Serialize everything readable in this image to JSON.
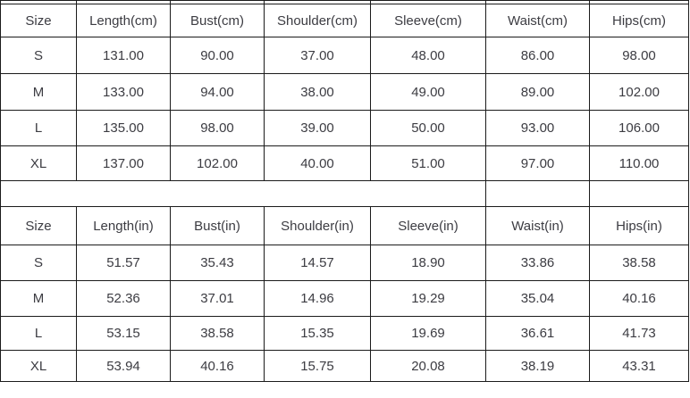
{
  "colors": {
    "background": "#ffffff",
    "border": "#1b1b1b",
    "text": "#3c3c42"
  },
  "chart_data": [
    {
      "type": "table",
      "columns": [
        "Size",
        "Length(cm)",
        "Bust(cm)",
        "Shoulder(cm)",
        "Sleeve(cm)",
        "Waist(cm)",
        "Hips(cm)"
      ],
      "rows": [
        [
          "S",
          "131.00",
          "90.00",
          "37.00",
          "48.00",
          "86.00",
          "98.00"
        ],
        [
          "M",
          "133.00",
          "94.00",
          "38.00",
          "49.00",
          "89.00",
          "102.00"
        ],
        [
          "L",
          "135.00",
          "98.00",
          "39.00",
          "50.00",
          "93.00",
          "106.00"
        ],
        [
          "XL",
          "137.00",
          "102.00",
          "40.00",
          "51.00",
          "97.00",
          "110.00"
        ]
      ]
    },
    {
      "type": "table",
      "columns": [
        "Size",
        "Length(in)",
        "Bust(in)",
        "Shoulder(in)",
        "Sleeve(in)",
        "Waist(in)",
        "Hips(in)"
      ],
      "rows": [
        [
          "S",
          "51.57",
          "35.43",
          "14.57",
          "18.90",
          "33.86",
          "38.58"
        ],
        [
          "M",
          "52.36",
          "37.01",
          "14.96",
          "19.29",
          "35.04",
          "40.16"
        ],
        [
          "L",
          "53.15",
          "38.58",
          "15.35",
          "19.69",
          "36.61",
          "41.73"
        ],
        [
          "XL",
          "53.94",
          "40.16",
          "15.75",
          "20.08",
          "38.19",
          "43.31"
        ]
      ]
    }
  ]
}
